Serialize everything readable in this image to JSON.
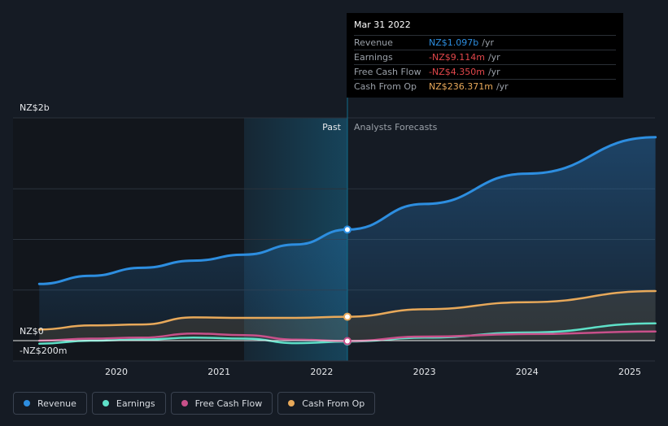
{
  "chart_data": {
    "type": "line",
    "y_axis": {
      "top_label": "NZ$2b",
      "zero_label": "NZ$0",
      "bottom_label": "-NZ$200m",
      "ylim": [
        -200,
        2000
      ]
    },
    "x_axis": {
      "ticks": [
        "2020",
        "2021",
        "2022",
        "2023",
        "2024",
        "2025"
      ]
    },
    "regions": {
      "past_label": "Past",
      "forecast_label": "Analysts Forecasts"
    },
    "series": [
      {
        "name": "Revenue",
        "color": "#2d8ee0",
        "points": [
          [
            2019.25,
            560
          ],
          [
            2019.75,
            640
          ],
          [
            2020.25,
            720
          ],
          [
            2020.75,
            790
          ],
          [
            2021.25,
            850
          ],
          [
            2021.75,
            950
          ],
          [
            2022.25,
            1097
          ],
          [
            2023,
            1350
          ],
          [
            2024,
            1650
          ],
          [
            2025.25,
            2010
          ]
        ]
      },
      {
        "name": "Earnings",
        "color": "#5ee0c8",
        "points": [
          [
            2019.25,
            -30
          ],
          [
            2019.75,
            0
          ],
          [
            2020.25,
            10
          ],
          [
            2020.75,
            30
          ],
          [
            2021.25,
            20
          ],
          [
            2021.75,
            -25
          ],
          [
            2022.25,
            -9.114
          ],
          [
            2023,
            30
          ],
          [
            2024,
            80
          ],
          [
            2025.25,
            170
          ]
        ]
      },
      {
        "name": "Free Cash Flow",
        "color": "#c8508a",
        "points": [
          [
            2019.25,
            0
          ],
          [
            2019.75,
            20
          ],
          [
            2020.25,
            30
          ],
          [
            2020.75,
            70
          ],
          [
            2021.25,
            55
          ],
          [
            2021.75,
            10
          ],
          [
            2022.25,
            -4.35
          ],
          [
            2023,
            40
          ],
          [
            2024,
            65
          ],
          [
            2025.25,
            90
          ]
        ]
      },
      {
        "name": "Cash From Op",
        "color": "#e8a95a",
        "points": [
          [
            2019.25,
            110
          ],
          [
            2019.75,
            150
          ],
          [
            2020.25,
            160
          ],
          [
            2020.75,
            230
          ],
          [
            2021.25,
            225
          ],
          [
            2021.75,
            225
          ],
          [
            2022.25,
            236.371
          ],
          [
            2023,
            310
          ],
          [
            2024,
            380
          ],
          [
            2025.25,
            490
          ]
        ]
      }
    ],
    "highlight_x": 2022.25
  },
  "tooltip": {
    "date": "Mar 31 2022",
    "rows": [
      {
        "name": "Revenue",
        "value": "NZ$1.097b",
        "unit": "/yr",
        "color": "#2d8ee0"
      },
      {
        "name": "Earnings",
        "value": "-NZ$9.114m",
        "unit": "/yr",
        "color": "#e2474b"
      },
      {
        "name": "Free Cash Flow",
        "value": "-NZ$4.350m",
        "unit": "/yr",
        "color": "#e2474b"
      },
      {
        "name": "Cash From Op",
        "value": "NZ$236.371m",
        "unit": "/yr",
        "color": "#e8a95a"
      }
    ]
  },
  "legend": [
    {
      "label": "Revenue",
      "color": "#2d8ee0"
    },
    {
      "label": "Earnings",
      "color": "#5ee0c8"
    },
    {
      "label": "Free Cash Flow",
      "color": "#c8508a"
    },
    {
      "label": "Cash From Op",
      "color": "#e8a95a"
    }
  ]
}
